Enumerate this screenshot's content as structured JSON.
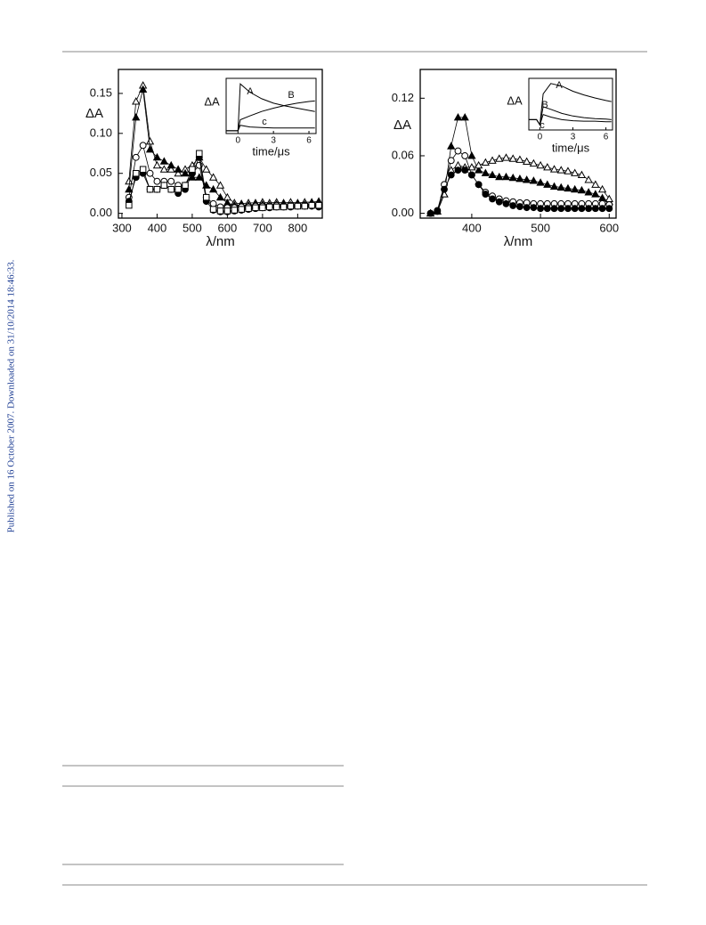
{
  "side_note": "Published on 16 October 2007. Downloaded on 31/10/2014 18:46:33.",
  "chart_data": [
    {
      "type": "line",
      "x_label": "λ/nm",
      "y_label": "ΔA",
      "xlim": [
        290,
        870
      ],
      "xticks": [
        300,
        400,
        500,
        600,
        700,
        800
      ],
      "ylim": [
        -0.006,
        0.18
      ],
      "yticks": [
        {
          "value": 0,
          "label": "0.00"
        },
        {
          "value": 0.05,
          "label": "0.05"
        },
        {
          "value": 0.1,
          "label": "0.10"
        },
        {
          "value": 0.15,
          "label": "0.15"
        }
      ],
      "x": [
        320,
        340,
        360,
        380,
        400,
        420,
        440,
        460,
        480,
        500,
        520,
        540,
        560,
        580,
        600,
        620,
        640,
        660,
        680,
        700,
        720,
        740,
        760,
        780,
        800,
        820,
        840,
        860
      ],
      "series": [
        {
          "marker": "triangle-open",
          "color": "#000000",
          "values": [
            0.04,
            0.14,
            0.16,
            0.09,
            0.06,
            0.055,
            0.055,
            0.05,
            0.055,
            0.06,
            0.07,
            0.055,
            0.045,
            0.035,
            0.02,
            0.013,
            0.012,
            0.013,
            0.013,
            0.014,
            0.013,
            0.014,
            0.013,
            0.014,
            0.013,
            0.014,
            0.014,
            0.015
          ]
        },
        {
          "marker": "triangle-filled",
          "color": "#000000",
          "values": [
            0.03,
            0.12,
            0.155,
            0.08,
            0.07,
            0.065,
            0.06,
            0.055,
            0.05,
            0.045,
            0.045,
            0.035,
            0.03,
            0.02,
            0.013,
            0.01,
            0.01,
            0.01,
            0.011,
            0.011,
            0.01,
            0.011,
            0.011,
            0.01,
            0.011,
            0.011,
            0.012,
            0.013
          ]
        },
        {
          "marker": "circle-open",
          "color": "#000000",
          "values": [
            0.02,
            0.07,
            0.085,
            0.05,
            0.04,
            0.04,
            0.04,
            0.035,
            0.035,
            0.05,
            0.06,
            0.02,
            0.012,
            0.008,
            0.007,
            0.007,
            0.008,
            0.008,
            0.009,
            0.009,
            0.009,
            0.01,
            0.009,
            0.01,
            0.01,
            0.01,
            0.01,
            0.011
          ]
        },
        {
          "marker": "circle-filled",
          "color": "#000000",
          "values": [
            0.015,
            0.045,
            0.05,
            0.03,
            0.03,
            0.035,
            0.03,
            0.025,
            0.03,
            0.05,
            0.07,
            0.015,
            0.004,
            0.002,
            0.002,
            0.003,
            0.004,
            0.005,
            0.006,
            0.007,
            0.007,
            0.008,
            0.008,
            0.008,
            0.009,
            0.009,
            0.009,
            0.008
          ]
        },
        {
          "marker": "square-open",
          "color": "#000000",
          "values": [
            0.01,
            0.05,
            0.055,
            0.03,
            0.03,
            0.035,
            0.03,
            0.03,
            0.035,
            0.055,
            0.075,
            0.02,
            0.005,
            0.003,
            0.003,
            0.004,
            0.005,
            0.006,
            0.007,
            0.007,
            0.008,
            0.008,
            0.008,
            0.009,
            0.009,
            0.009,
            0.01,
            0.01
          ]
        }
      ]
    },
    {
      "type": "line",
      "x_label": "time/μs",
      "y_label": "ΔA",
      "xlim": [
        -1,
        6.6
      ],
      "xticks": [
        0,
        3,
        6
      ],
      "ylim": [
        0,
        1
      ],
      "x": [
        -1,
        -0.5,
        0,
        0.2,
        1,
        2,
        3,
        4,
        5,
        6,
        6.5
      ],
      "series": [
        {
          "name": "A",
          "color": "#000000",
          "values": [
            0.05,
            0.05,
            0.05,
            0.9,
            0.75,
            0.63,
            0.55,
            0.5,
            0.46,
            0.42,
            0.4
          ]
        },
        {
          "name": "B",
          "color": "#000000",
          "values": [
            0.05,
            0.05,
            0.05,
            0.25,
            0.32,
            0.4,
            0.46,
            0.51,
            0.55,
            0.58,
            0.59
          ]
        },
        {
          "name": "c",
          "color": "#000000",
          "values": [
            0.05,
            0.05,
            0.05,
            0.15,
            0.12,
            0.11,
            0.1,
            0.1,
            0.1,
            0.1,
            0.1
          ]
        }
      ]
    },
    {
      "type": "line",
      "x_label": "λ/nm",
      "y_label": "ΔA",
      "xlim": [
        325,
        610
      ],
      "xticks": [
        400,
        500,
        600
      ],
      "ylim": [
        -0.005,
        0.15
      ],
      "yticks": [
        {
          "value": 0,
          "label": "0.00"
        },
        0.06,
        0.12
      ],
      "x": [
        340,
        350,
        360,
        370,
        380,
        390,
        400,
        410,
        420,
        430,
        440,
        450,
        460,
        470,
        480,
        490,
        500,
        510,
        520,
        530,
        540,
        550,
        560,
        570,
        580,
        590,
        600
      ],
      "series": [
        {
          "marker": "triangle-filled",
          "color": "#000000",
          "values": [
            0,
            0.002,
            0.02,
            0.07,
            0.1,
            0.1,
            0.06,
            0.045,
            0.042,
            0.04,
            0.038,
            0.038,
            0.037,
            0.036,
            0.035,
            0.034,
            0.032,
            0.03,
            0.028,
            0.027,
            0.026,
            0.025,
            0.024,
            0.022,
            0.02,
            0.016,
            0.012
          ]
        },
        {
          "marker": "triangle-open",
          "color": "#000000",
          "values": [
            0,
            0.002,
            0.02,
            0.045,
            0.05,
            0.048,
            0.048,
            0.05,
            0.053,
            0.055,
            0.057,
            0.058,
            0.057,
            0.056,
            0.054,
            0.052,
            0.05,
            0.048,
            0.046,
            0.045,
            0.044,
            0.042,
            0.04,
            0.035,
            0.03,
            0.025,
            0.015
          ]
        },
        {
          "marker": "circle-open",
          "color": "#000000",
          "values": [
            0,
            0.003,
            0.03,
            0.055,
            0.065,
            0.06,
            0.04,
            0.03,
            0.022,
            0.018,
            0.015,
            0.013,
            0.012,
            0.011,
            0.011,
            0.01,
            0.01,
            0.01,
            0.01,
            0.01,
            0.01,
            0.01,
            0.01,
            0.01,
            0.01,
            0.01,
            0.009
          ]
        },
        {
          "marker": "circle-filled",
          "color": "#000000",
          "values": [
            0,
            0.002,
            0.025,
            0.04,
            0.045,
            0.045,
            0.04,
            0.03,
            0.02,
            0.015,
            0.012,
            0.01,
            0.008,
            0.007,
            0.006,
            0.006,
            0.005,
            0.005,
            0.005,
            0.005,
            0.005,
            0.005,
            0.005,
            0.005,
            0.005,
            0.005,
            0.005
          ]
        }
      ]
    },
    {
      "type": "line",
      "x_label": "time/μs",
      "y_label": "ΔA",
      "xlim": [
        -1,
        6.6
      ],
      "xticks": [
        0,
        3,
        6
      ],
      "ylim": [
        0,
        1
      ],
      "x": [
        -1,
        -0.3,
        0,
        0.3,
        1,
        2,
        3,
        4,
        5,
        6,
        6.5
      ],
      "series": [
        {
          "name": "A",
          "color": "#000000",
          "values": [
            0.2,
            0.2,
            0.1,
            0.7,
            0.9,
            0.85,
            0.75,
            0.68,
            0.62,
            0.57,
            0.55
          ]
        },
        {
          "name": "B",
          "color": "#000000",
          "values": [
            0.2,
            0.2,
            0.1,
            0.45,
            0.4,
            0.32,
            0.27,
            0.24,
            0.22,
            0.21,
            0.2
          ]
        },
        {
          "name": "c",
          "color": "#000000",
          "values": [
            0.2,
            0.2,
            0.1,
            0.3,
            0.25,
            0.2,
            0.18,
            0.17,
            0.17,
            0.16,
            0.16
          ]
        }
      ]
    }
  ]
}
